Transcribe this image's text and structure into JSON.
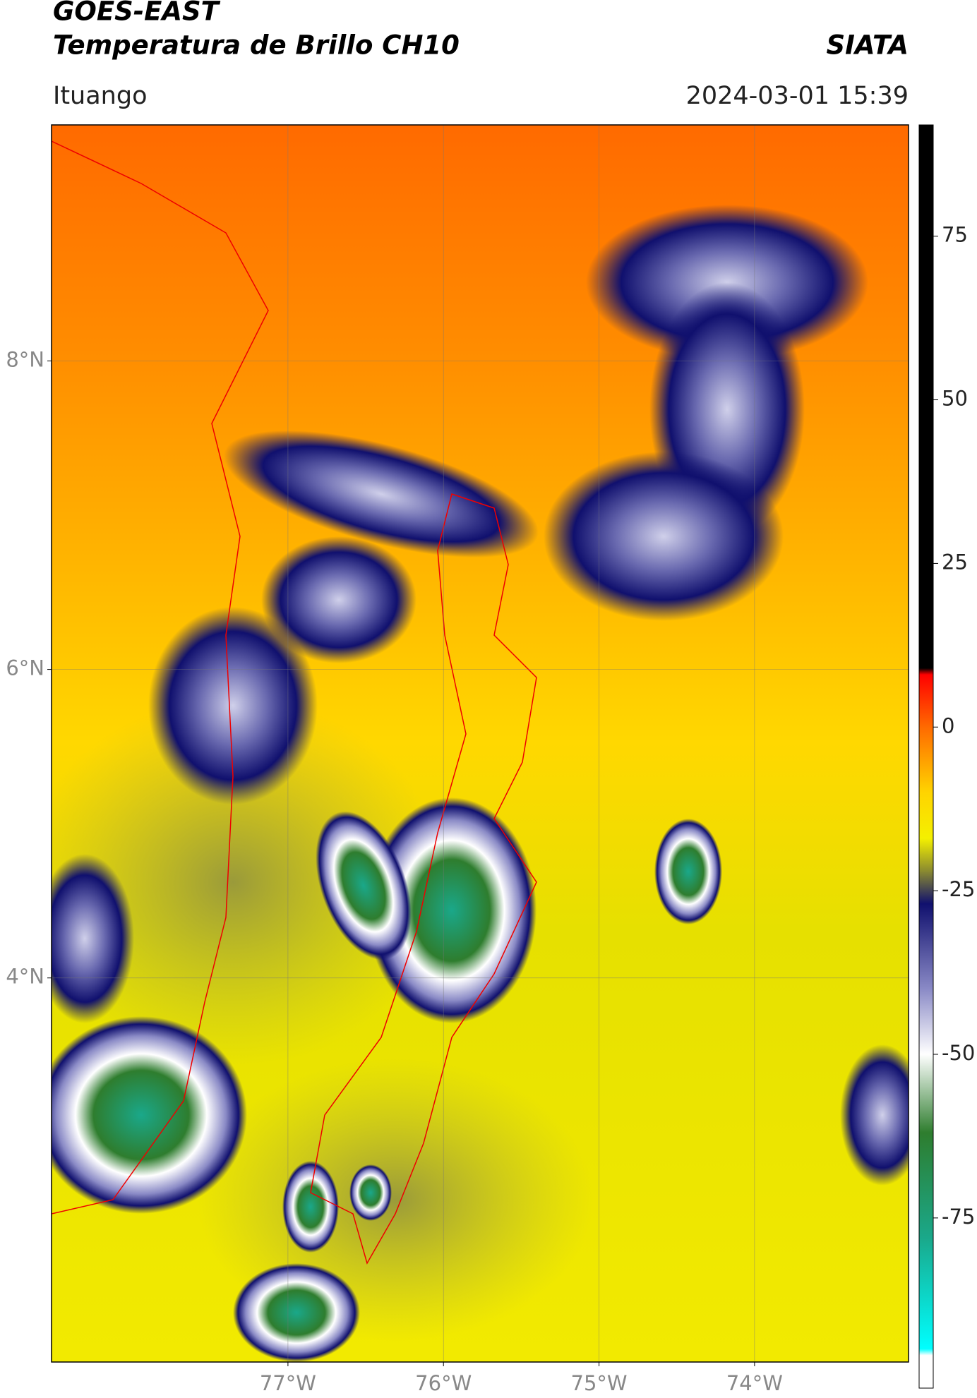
{
  "header": {
    "title": "GOES-EAST",
    "subtitle": "Temperatura de Brillo CH10",
    "source": "SIATA",
    "region": "Ituango",
    "datetime": "2024-03-01 15:39"
  },
  "map": {
    "xlim": [
      -78.52,
      -73.01
    ],
    "ylim": [
      1.51,
      9.53
    ],
    "xticks": [
      {
        "value": -77,
        "label": "77°W"
      },
      {
        "value": -76,
        "label": "76°W"
      },
      {
        "value": -75,
        "label": "75°W"
      },
      {
        "value": -74,
        "label": "74°W"
      }
    ],
    "yticks": [
      {
        "value": 8,
        "label": "8°N"
      },
      {
        "value": 6,
        "label": "6°N"
      },
      {
        "value": 4,
        "label": "4°N"
      }
    ],
    "grid": true
  },
  "colorbar": {
    "lim": [
      -101,
      92
    ],
    "ticks": [
      75,
      50,
      25,
      0,
      -25,
      -50,
      -75
    ],
    "stops": [
      {
        "value": 92,
        "color": "#000000"
      },
      {
        "value": 9,
        "color": "#000000"
      },
      {
        "value": 8,
        "color": "#ff0000"
      },
      {
        "value": 0,
        "color": "#ff6a00"
      },
      {
        "value": -10,
        "color": "#ffd400"
      },
      {
        "value": -17,
        "color": "#f4f000"
      },
      {
        "value": -22,
        "color": "#8a8a30"
      },
      {
        "value": -27,
        "color": "#10106e"
      },
      {
        "value": -40,
        "color": "#8a8ac6"
      },
      {
        "value": -50,
        "color": "#ffffff"
      },
      {
        "value": -62,
        "color": "#2e7d2e"
      },
      {
        "value": -78,
        "color": "#1aa88a"
      },
      {
        "value": -95,
        "color": "#00ffff"
      },
      {
        "value": -96,
        "color": "#ffffff"
      },
      {
        "value": -101,
        "color": "#ffffff"
      }
    ]
  }
}
